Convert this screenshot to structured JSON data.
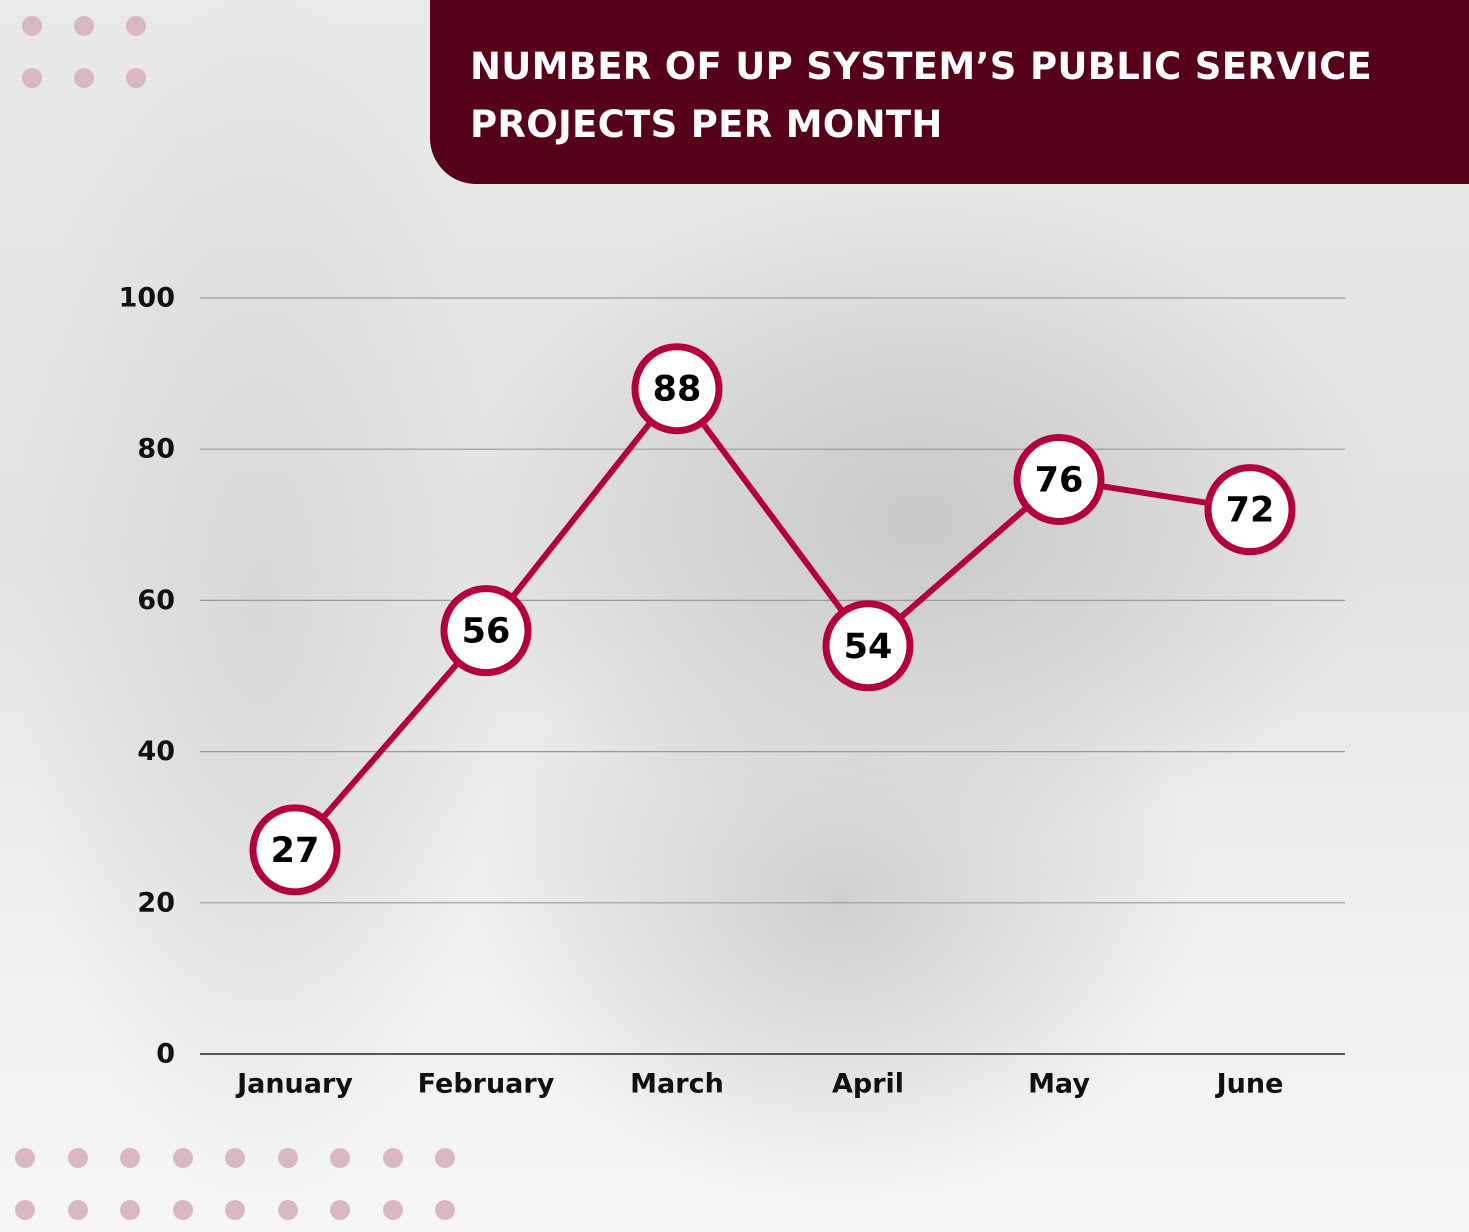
{
  "title": "NUMBER OF UP SYSTEM’S PUBLIC SERVICE\nPROJECTS PER MONTH",
  "colors": {
    "banner": "#570019",
    "line": "#b3003c",
    "marker_fill": "#ffffff",
    "gridline": "#9a9a9a",
    "dots": "#d9b8c2"
  },
  "chart_data": {
    "type": "line",
    "categories": [
      "January",
      "February",
      "March",
      "April",
      "May",
      "June"
    ],
    "values": [
      27,
      56,
      88,
      54,
      76,
      72
    ],
    "data_labels": [
      "27",
      "56",
      "88",
      "54",
      "76",
      "72"
    ],
    "ylim": [
      0,
      100
    ],
    "yticks": [
      0,
      20,
      40,
      60,
      80,
      100
    ],
    "grid": true,
    "legend": "none",
    "title": "NUMBER OF UP SYSTEM’S PUBLIC SERVICE PROJECTS PER MONTH",
    "xlabel": "",
    "ylabel": ""
  }
}
